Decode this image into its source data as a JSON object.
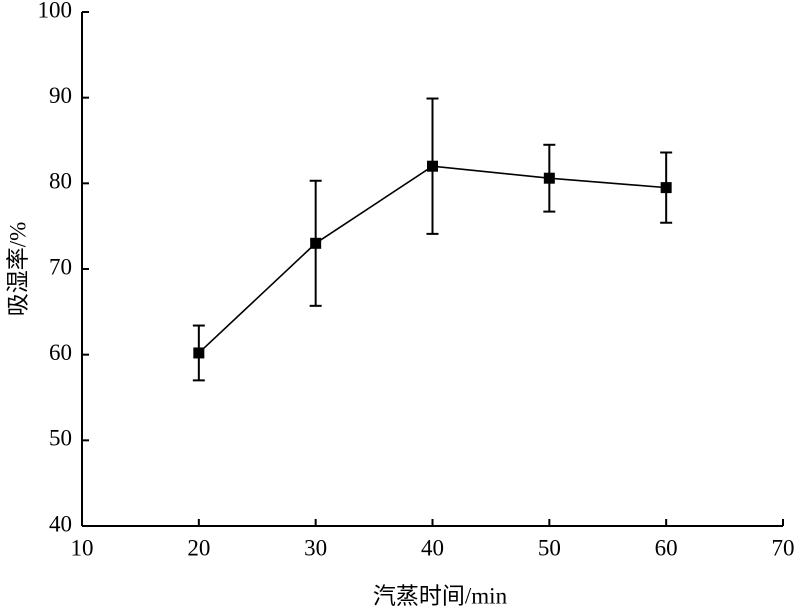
{
  "chart_data": {
    "type": "line",
    "xlabel": "汽蒸时间/min",
    "ylabel": "吸湿率/%",
    "series": [
      {
        "color": "#000000",
        "x": [
          20,
          30,
          40,
          50,
          60
        ],
        "values": [
          60.2,
          73.0,
          82.0,
          80.6,
          79.5
        ],
        "errors": [
          3.2,
          7.3,
          7.9,
          3.9,
          4.1
        ]
      }
    ],
    "xlim": [
      10,
      70
    ],
    "xticks": [
      10,
      20,
      30,
      40,
      50,
      60,
      70
    ],
    "ylim": [
      40,
      100
    ],
    "yticks": [
      40,
      50,
      60,
      70,
      80,
      90,
      100
    ],
    "grid": false
  }
}
